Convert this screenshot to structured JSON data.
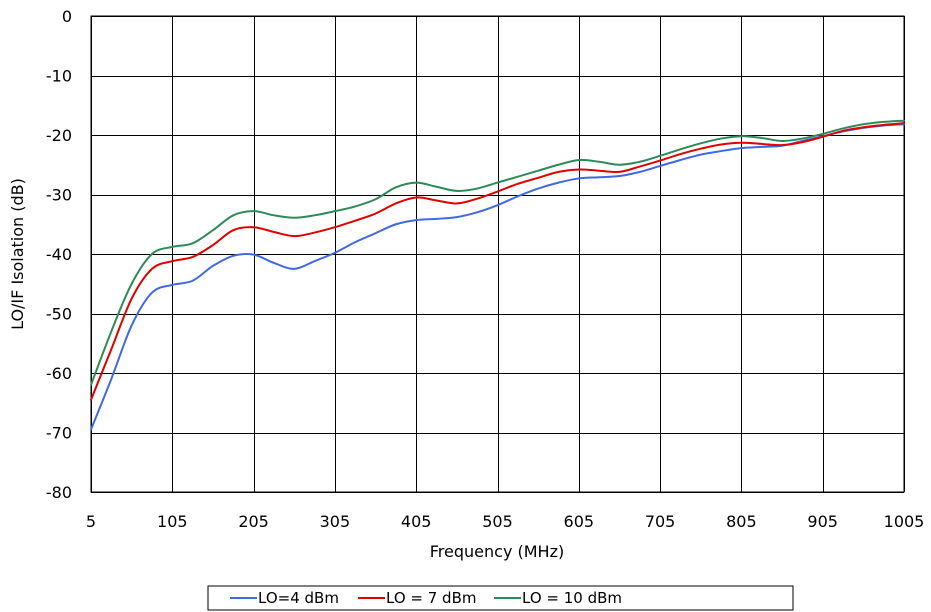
{
  "chart_data": {
    "type": "line",
    "title": "",
    "xlabel": "Frequency (MHz)",
    "ylabel": "LO/IF Isolation (dB)",
    "xlim": [
      5,
      1005
    ],
    "ylim": [
      -80,
      0
    ],
    "x_ticks": [
      5,
      105,
      205,
      305,
      405,
      505,
      605,
      705,
      805,
      905,
      1005
    ],
    "y_ticks": [
      0,
      -10,
      -20,
      -30,
      -40,
      -50,
      -60,
      -70,
      -80
    ],
    "grid": true,
    "legend_position": "bottom",
    "x": [
      5,
      30,
      55,
      80,
      105,
      130,
      155,
      180,
      205,
      230,
      255,
      280,
      305,
      330,
      355,
      380,
      405,
      430,
      455,
      480,
      505,
      530,
      555,
      580,
      605,
      630,
      655,
      680,
      705,
      730,
      755,
      780,
      805,
      830,
      855,
      880,
      905,
      930,
      955,
      980,
      1005
    ],
    "series": [
      {
        "name": "LO=4 dBm",
        "color": "#4169e1",
        "values": [
          -69.5,
          -61,
          -52,
          -46.5,
          -45.2,
          -44.5,
          -42,
          -40.3,
          -40.1,
          -41.5,
          -42.5,
          -41.2,
          -39.8,
          -38,
          -36.5,
          -35,
          -34.3,
          -34.1,
          -33.8,
          -33,
          -31.8,
          -30.3,
          -29,
          -28,
          -27.3,
          -27.1,
          -26.9,
          -26.2,
          -25.2,
          -24.2,
          -23.3,
          -22.7,
          -22.2,
          -22,
          -21.8,
          -21,
          -20.2,
          -19.4,
          -18.8,
          -18.4,
          -18.2
        ]
      },
      {
        "name": "LO = 7 dBm",
        "color": "#e00000",
        "values": [
          -64.5,
          -56,
          -47.5,
          -42.5,
          -41.2,
          -40.5,
          -38.5,
          -36,
          -35.5,
          -36.3,
          -37,
          -36.4,
          -35.5,
          -34.4,
          -33.2,
          -31.5,
          -30.5,
          -31,
          -31.5,
          -30.7,
          -29.5,
          -28.2,
          -27.2,
          -26.2,
          -25.8,
          -26,
          -26.2,
          -25.3,
          -24.3,
          -23.2,
          -22.3,
          -21.6,
          -21.3,
          -21.5,
          -21.7,
          -21.2,
          -20.3,
          -19.3,
          -18.7,
          -18.3,
          -18
        ]
      },
      {
        "name": "LO = 10 dBm",
        "color": "#2e8b57",
        "values": [
          -62,
          -53,
          -45,
          -40,
          -38.8,
          -38.2,
          -36,
          -33.5,
          -32.8,
          -33.5,
          -33.9,
          -33.5,
          -32.8,
          -32,
          -30.8,
          -28.8,
          -28,
          -28.7,
          -29.4,
          -29,
          -28,
          -27,
          -26,
          -25,
          -24.2,
          -24.5,
          -25,
          -24.5,
          -23.5,
          -22.4,
          -21.4,
          -20.6,
          -20.2,
          -20.5,
          -21,
          -20.6,
          -19.8,
          -18.9,
          -18.2,
          -17.8,
          -17.6
        ]
      }
    ]
  }
}
